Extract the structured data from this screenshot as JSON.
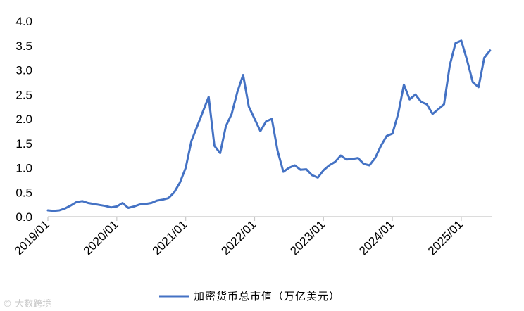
{
  "chart_data": {
    "type": "line",
    "title": "",
    "xlabel": "",
    "ylabel": "",
    "ylim": [
      0,
      4
    ],
    "y_ticks": [
      "0.0",
      "0.5",
      "1.0",
      "1.5",
      "2.0",
      "2.5",
      "3.0",
      "3.5",
      "4.0"
    ],
    "x_ticks": [
      "2019/01",
      "2020/01",
      "2021/01",
      "2022/01",
      "2023/01",
      "2024/01",
      "2025/01"
    ],
    "x_range": [
      "2019/01",
      "2025/06"
    ],
    "grid": false,
    "legend_position": "bottom",
    "series": [
      {
        "name": "加密货币总市值（万亿美元）",
        "color": "#4472C4",
        "points": [
          [
            "2019/01",
            0.13
          ],
          [
            "2019/02",
            0.12
          ],
          [
            "2019/03",
            0.13
          ],
          [
            "2019/04",
            0.17
          ],
          [
            "2019/05",
            0.23
          ],
          [
            "2019/06",
            0.3
          ],
          [
            "2019/07",
            0.32
          ],
          [
            "2019/08",
            0.28
          ],
          [
            "2019/09",
            0.26
          ],
          [
            "2019/10",
            0.24
          ],
          [
            "2019/11",
            0.22
          ],
          [
            "2019/12",
            0.19
          ],
          [
            "2020/01",
            0.21
          ],
          [
            "2020/02",
            0.28
          ],
          [
            "2020/03",
            0.18
          ],
          [
            "2020/04",
            0.21
          ],
          [
            "2020/05",
            0.25
          ],
          [
            "2020/06",
            0.26
          ],
          [
            "2020/07",
            0.28
          ],
          [
            "2020/08",
            0.33
          ],
          [
            "2020/09",
            0.35
          ],
          [
            "2020/10",
            0.38
          ],
          [
            "2020/11",
            0.5
          ],
          [
            "2020/12",
            0.7
          ],
          [
            "2021/01",
            1.0
          ],
          [
            "2021/02",
            1.55
          ],
          [
            "2021/03",
            1.85
          ],
          [
            "2021/04",
            2.15
          ],
          [
            "2021/05",
            2.45
          ],
          [
            "2021/06",
            1.45
          ],
          [
            "2021/07",
            1.3
          ],
          [
            "2021/08",
            1.85
          ],
          [
            "2021/09",
            2.1
          ],
          [
            "2021/10",
            2.55
          ],
          [
            "2021/11",
            2.9
          ],
          [
            "2021/12",
            2.25
          ],
          [
            "2022/01",
            2.0
          ],
          [
            "2022/02",
            1.75
          ],
          [
            "2022/03",
            1.95
          ],
          [
            "2022/04",
            2.0
          ],
          [
            "2022/05",
            1.35
          ],
          [
            "2022/06",
            0.92
          ],
          [
            "2022/07",
            1.0
          ],
          [
            "2022/08",
            1.05
          ],
          [
            "2022/09",
            0.96
          ],
          [
            "2022/10",
            0.97
          ],
          [
            "2022/11",
            0.85
          ],
          [
            "2022/12",
            0.8
          ],
          [
            "2023/01",
            0.95
          ],
          [
            "2023/02",
            1.05
          ],
          [
            "2023/03",
            1.12
          ],
          [
            "2023/04",
            1.25
          ],
          [
            "2023/05",
            1.17
          ],
          [
            "2023/06",
            1.18
          ],
          [
            "2023/07",
            1.2
          ],
          [
            "2023/08",
            1.08
          ],
          [
            "2023/09",
            1.05
          ],
          [
            "2023/10",
            1.2
          ],
          [
            "2023/11",
            1.45
          ],
          [
            "2023/12",
            1.65
          ],
          [
            "2024/01",
            1.7
          ],
          [
            "2024/02",
            2.1
          ],
          [
            "2024/03",
            2.7
          ],
          [
            "2024/04",
            2.4
          ],
          [
            "2024/05",
            2.5
          ],
          [
            "2024/06",
            2.35
          ],
          [
            "2024/07",
            2.3
          ],
          [
            "2024/08",
            2.1
          ],
          [
            "2024/09",
            2.2
          ],
          [
            "2024/10",
            2.3
          ],
          [
            "2024/11",
            3.1
          ],
          [
            "2024/12",
            3.55
          ],
          [
            "2025/01",
            3.6
          ],
          [
            "2025/02",
            3.2
          ],
          [
            "2025/03",
            2.75
          ],
          [
            "2025/04",
            2.65
          ],
          [
            "2025/05",
            3.25
          ],
          [
            "2025/06",
            3.4
          ]
        ]
      }
    ]
  },
  "watermark": {
    "text": "© 大数跨境"
  }
}
